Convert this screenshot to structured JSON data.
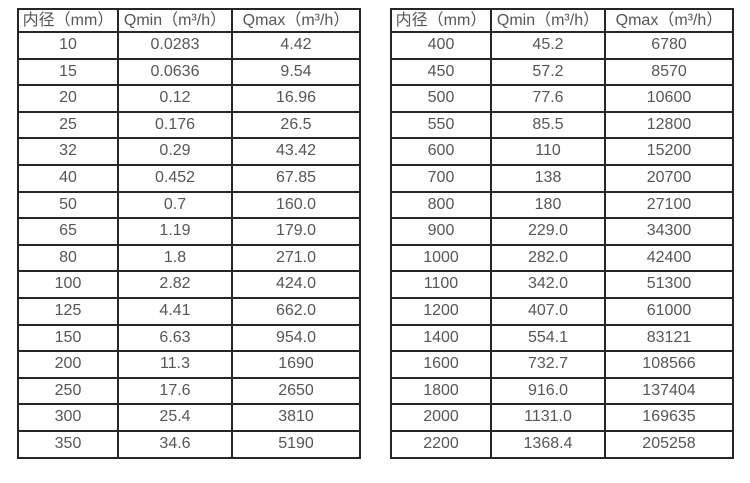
{
  "page": {
    "background_color": "#ffffff",
    "text_color": "#565656",
    "border_color": "#262626"
  },
  "tables": [
    {
      "name": "flow-spec-table-small-diameters",
      "headers": [
        "内径（mm）",
        "Qmin（m³/h）",
        "Qmax（m³/h）"
      ],
      "rows": [
        [
          "10",
          "0.0283",
          "4.42"
        ],
        [
          "15",
          "0.0636",
          "9.54"
        ],
        [
          "20",
          "0.12",
          "16.96"
        ],
        [
          "25",
          "0.176",
          "26.5"
        ],
        [
          "32",
          "0.29",
          "43.42"
        ],
        [
          "40",
          "0.452",
          "67.85"
        ],
        [
          "50",
          "0.7",
          "160.0"
        ],
        [
          "65",
          "1.19",
          "179.0"
        ],
        [
          "80",
          "1.8",
          "271.0"
        ],
        [
          "100",
          "2.82",
          "424.0"
        ],
        [
          "125",
          "4.41",
          "662.0"
        ],
        [
          "150",
          "6.63",
          "954.0"
        ],
        [
          "200",
          "11.3",
          "1690"
        ],
        [
          "250",
          "17.6",
          "2650"
        ],
        [
          "300",
          "25.4",
          "3810"
        ],
        [
          "350",
          "34.6",
          "5190"
        ]
      ]
    },
    {
      "name": "flow-spec-table-large-diameters",
      "headers": [
        "内径（mm）",
        "Qmin（m³/h）",
        "Qmax（m³/h）"
      ],
      "rows": [
        [
          "400",
          "45.2",
          "6780"
        ],
        [
          "450",
          "57.2",
          "8570"
        ],
        [
          "500",
          "77.6",
          "10600"
        ],
        [
          "550",
          "85.5",
          "12800"
        ],
        [
          "600",
          "110",
          "15200"
        ],
        [
          "700",
          "138",
          "20700"
        ],
        [
          "800",
          "180",
          "27100"
        ],
        [
          "900",
          "229.0",
          "34300"
        ],
        [
          "1000",
          "282.0",
          "42400"
        ],
        [
          "1100",
          "342.0",
          "51300"
        ],
        [
          "1200",
          "407.0",
          "61000"
        ],
        [
          "1400",
          "554.1",
          "83121"
        ],
        [
          "1600",
          "732.7",
          "108566"
        ],
        [
          "1800",
          "916.0",
          "137404"
        ],
        [
          "2000",
          "1131.0",
          "169635"
        ],
        [
          "2200",
          "1368.4",
          "205258"
        ]
      ]
    }
  ],
  "chart_data": {
    "type": "table",
    "title": "",
    "columns": [
      "内径（mm）",
      "Qmin（m³/h）",
      "Qmax（m³/h）"
    ],
    "note": "two side-by-side tables of flow meter min/max flow rates by inner diameter"
  }
}
